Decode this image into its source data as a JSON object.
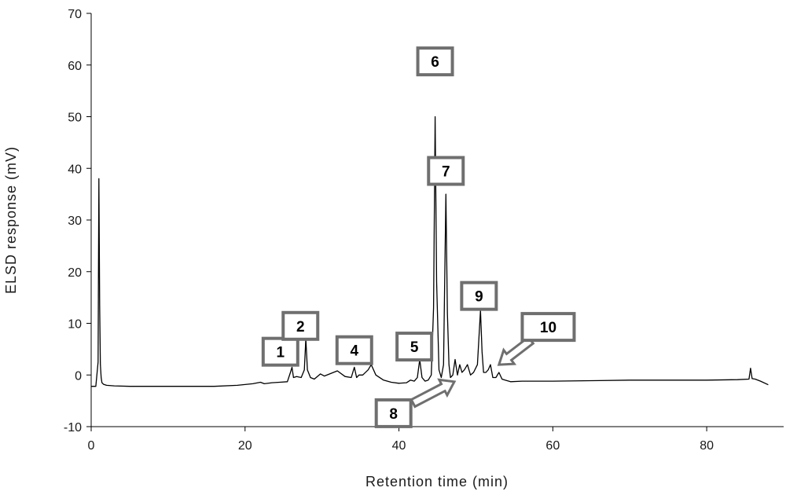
{
  "chart_data": {
    "type": "line",
    "title": "",
    "xlabel": "Retention time (min)",
    "ylabel": "ELSD response (mV)",
    "xlim": [
      0,
      90
    ],
    "ylim": [
      -10,
      70
    ],
    "xticks": [
      0,
      20,
      40,
      60,
      80
    ],
    "yticks": [
      -10,
      0,
      10,
      20,
      30,
      40,
      50,
      60,
      70
    ],
    "grid": false,
    "legend": "none",
    "series": [
      {
        "x": [
          0,
          0.6,
          0.9,
          1.0,
          1.1,
          1.2,
          1.3,
          1.4,
          1.6,
          2.0,
          3.0,
          5.0,
          8.0,
          12.0,
          16.0,
          19.0,
          21.0,
          22.0,
          22.5,
          23.5,
          24.5,
          25.5,
          25.9,
          26.1,
          26.3,
          26.7,
          27.3,
          27.7,
          27.9,
          28.1,
          28.5,
          29.0,
          29.8,
          30.3,
          31.0,
          32.0,
          33.0,
          33.8,
          34.2,
          34.5,
          34.8,
          35.3,
          36.0,
          36.4,
          37.0,
          38.0,
          39.0,
          40.0,
          41.0,
          41.5,
          42.0,
          42.4,
          42.7,
          43.0,
          43.4,
          43.8,
          44.2,
          44.5,
          44.7,
          44.9,
          45.2,
          45.5,
          45.8,
          46.1,
          46.3,
          46.5,
          46.7,
          47.0,
          47.3,
          47.6,
          47.9,
          48.2,
          48.5,
          48.9,
          49.3,
          49.7,
          50.2,
          50.6,
          50.8,
          51.0,
          51.3,
          51.6,
          51.9,
          52.2,
          52.6,
          53.0,
          53.4,
          53.8,
          54.5,
          56.0,
          60.0,
          65.0,
          70.0,
          75.0,
          80.0,
          84.0,
          85.5,
          85.7,
          85.9,
          86.3,
          87.0,
          88.0
        ],
        "values": [
          -2.2,
          -2.2,
          2.5,
          38.0,
          13.5,
          2.0,
          -0.5,
          -1.5,
          -1.8,
          -2.0,
          -2.1,
          -2.2,
          -2.2,
          -2.2,
          -2.2,
          -2.0,
          -1.7,
          -1.4,
          -1.7,
          -1.5,
          -1.4,
          -1.3,
          0.5,
          1.5,
          -0.5,
          -0.3,
          -0.5,
          1.0,
          7.0,
          1.0,
          -0.5,
          -0.8,
          0.2,
          -0.2,
          0.2,
          0.8,
          -0.3,
          -0.5,
          1.5,
          -0.5,
          0.0,
          0.0,
          1.0,
          2.0,
          0.0,
          -1.0,
          -1.4,
          -1.6,
          -1.5,
          -1.0,
          -1.2,
          -0.5,
          3.0,
          -0.5,
          -1.2,
          -1.0,
          0.0,
          13.0,
          50.0,
          18.0,
          1.0,
          -0.5,
          2.0,
          35.0,
          12.0,
          2.0,
          -0.5,
          0.0,
          3.0,
          0.0,
          2.0,
          0.5,
          1.0,
          2.0,
          0.0,
          0.5,
          2.0,
          12.5,
          4.5,
          0.5,
          0.5,
          1.0,
          2.0,
          -0.5,
          -0.5,
          0.5,
          -0.8,
          -1.0,
          -1.3,
          -1.2,
          -1.2,
          -1.1,
          -1.0,
          -1.0,
          -1.0,
          -0.9,
          -0.8,
          1.3,
          -0.7,
          -0.8,
          -1.2,
          -1.9
        ]
      }
    ],
    "annotations": [
      {
        "label": "1",
        "x": 24.6,
        "y": 4.5
      },
      {
        "label": "2",
        "x": 27.2,
        "y": 9.5
      },
      {
        "label": "4",
        "x": 34.2,
        "y": 4.8
      },
      {
        "label": "5",
        "x": 42.0,
        "y": 5.5
      },
      {
        "label": "6",
        "x": 44.7,
        "y": 60.7
      },
      {
        "label": "7",
        "x": 46.1,
        "y": 39.5
      },
      {
        "label": "8",
        "x": 39.3,
        "y": -7.4,
        "arrow_to": [
          47.2,
          -1.3
        ]
      },
      {
        "label": "9",
        "x": 50.4,
        "y": 15.3
      },
      {
        "label": "10",
        "x": 59.4,
        "y": 9.3,
        "arrow_to": [
          53.0,
          2.0
        ]
      }
    ]
  }
}
